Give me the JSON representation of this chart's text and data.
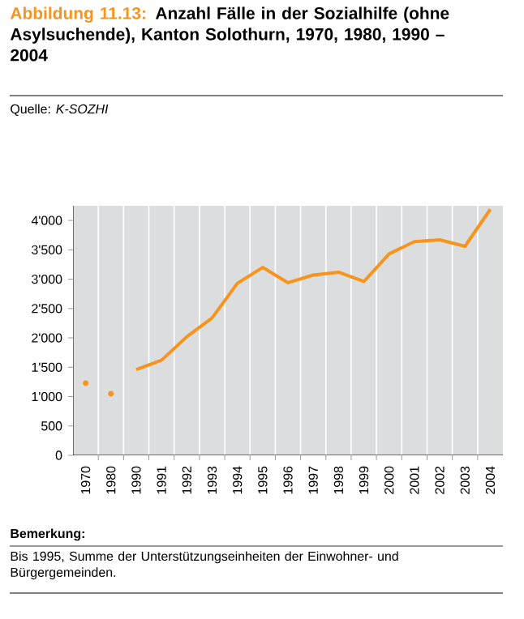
{
  "chart_data": {
    "type": "line",
    "title": "Abbildung 11.13:",
    "subtitle": "Anzahl Fälle in der Sozialhilfe (ohne Asylsuchende), Kanton Solothurn, 1970, 1980, 1990 – 2004",
    "annotations": [
      "Quelle: *K-SOZHI*",
      "Bemerkung:",
      "Bis 1995, Summe der Unterstützungseinheiten der Einwohner- und Bürgergemeinden."
    ],
    "categories": [
      "1970",
      "1980",
      "1990",
      "1991",
      "1992",
      "1993",
      "1994",
      "1995",
      "1996",
      "1997",
      "1998",
      "1999",
      "2000",
      "2001",
      "2002",
      "2003",
      "2004"
    ],
    "series": [
      {
        "type": "scatter",
        "color": "#f7941d",
        "values": [
          1230,
          1050,
          null,
          null,
          null,
          null,
          null,
          null,
          null,
          null,
          null,
          null,
          null,
          null,
          null,
          null,
          null
        ]
      },
      {
        "color": "#f7941d",
        "values": [
          null,
          null,
          1460,
          1620,
          2020,
          2340,
          2930,
          3200,
          2940,
          3070,
          3120,
          2960,
          3430,
          3640,
          3670,
          3560,
          4190
        ]
      }
    ],
    "ylim": [
      0,
      4250
    ],
    "yticks": [
      {
        "value": 0,
        "label": "0"
      },
      {
        "value": 500,
        "label": "500"
      },
      {
        "value": 1000,
        "label": "1'000"
      },
      {
        "value": 1500,
        "label": "1'500"
      },
      {
        "value": 2000,
        "label": "2'000"
      },
      {
        "value": 2500,
        "label": "2'500"
      },
      {
        "value": 3000,
        "label": "3'000"
      },
      {
        "value": 3500,
        "label": "3'500"
      },
      {
        "value": 4000,
        "label": "4'000"
      }
    ],
    "grid": "x",
    "marker": "none",
    "line_style": "solid"
  }
}
